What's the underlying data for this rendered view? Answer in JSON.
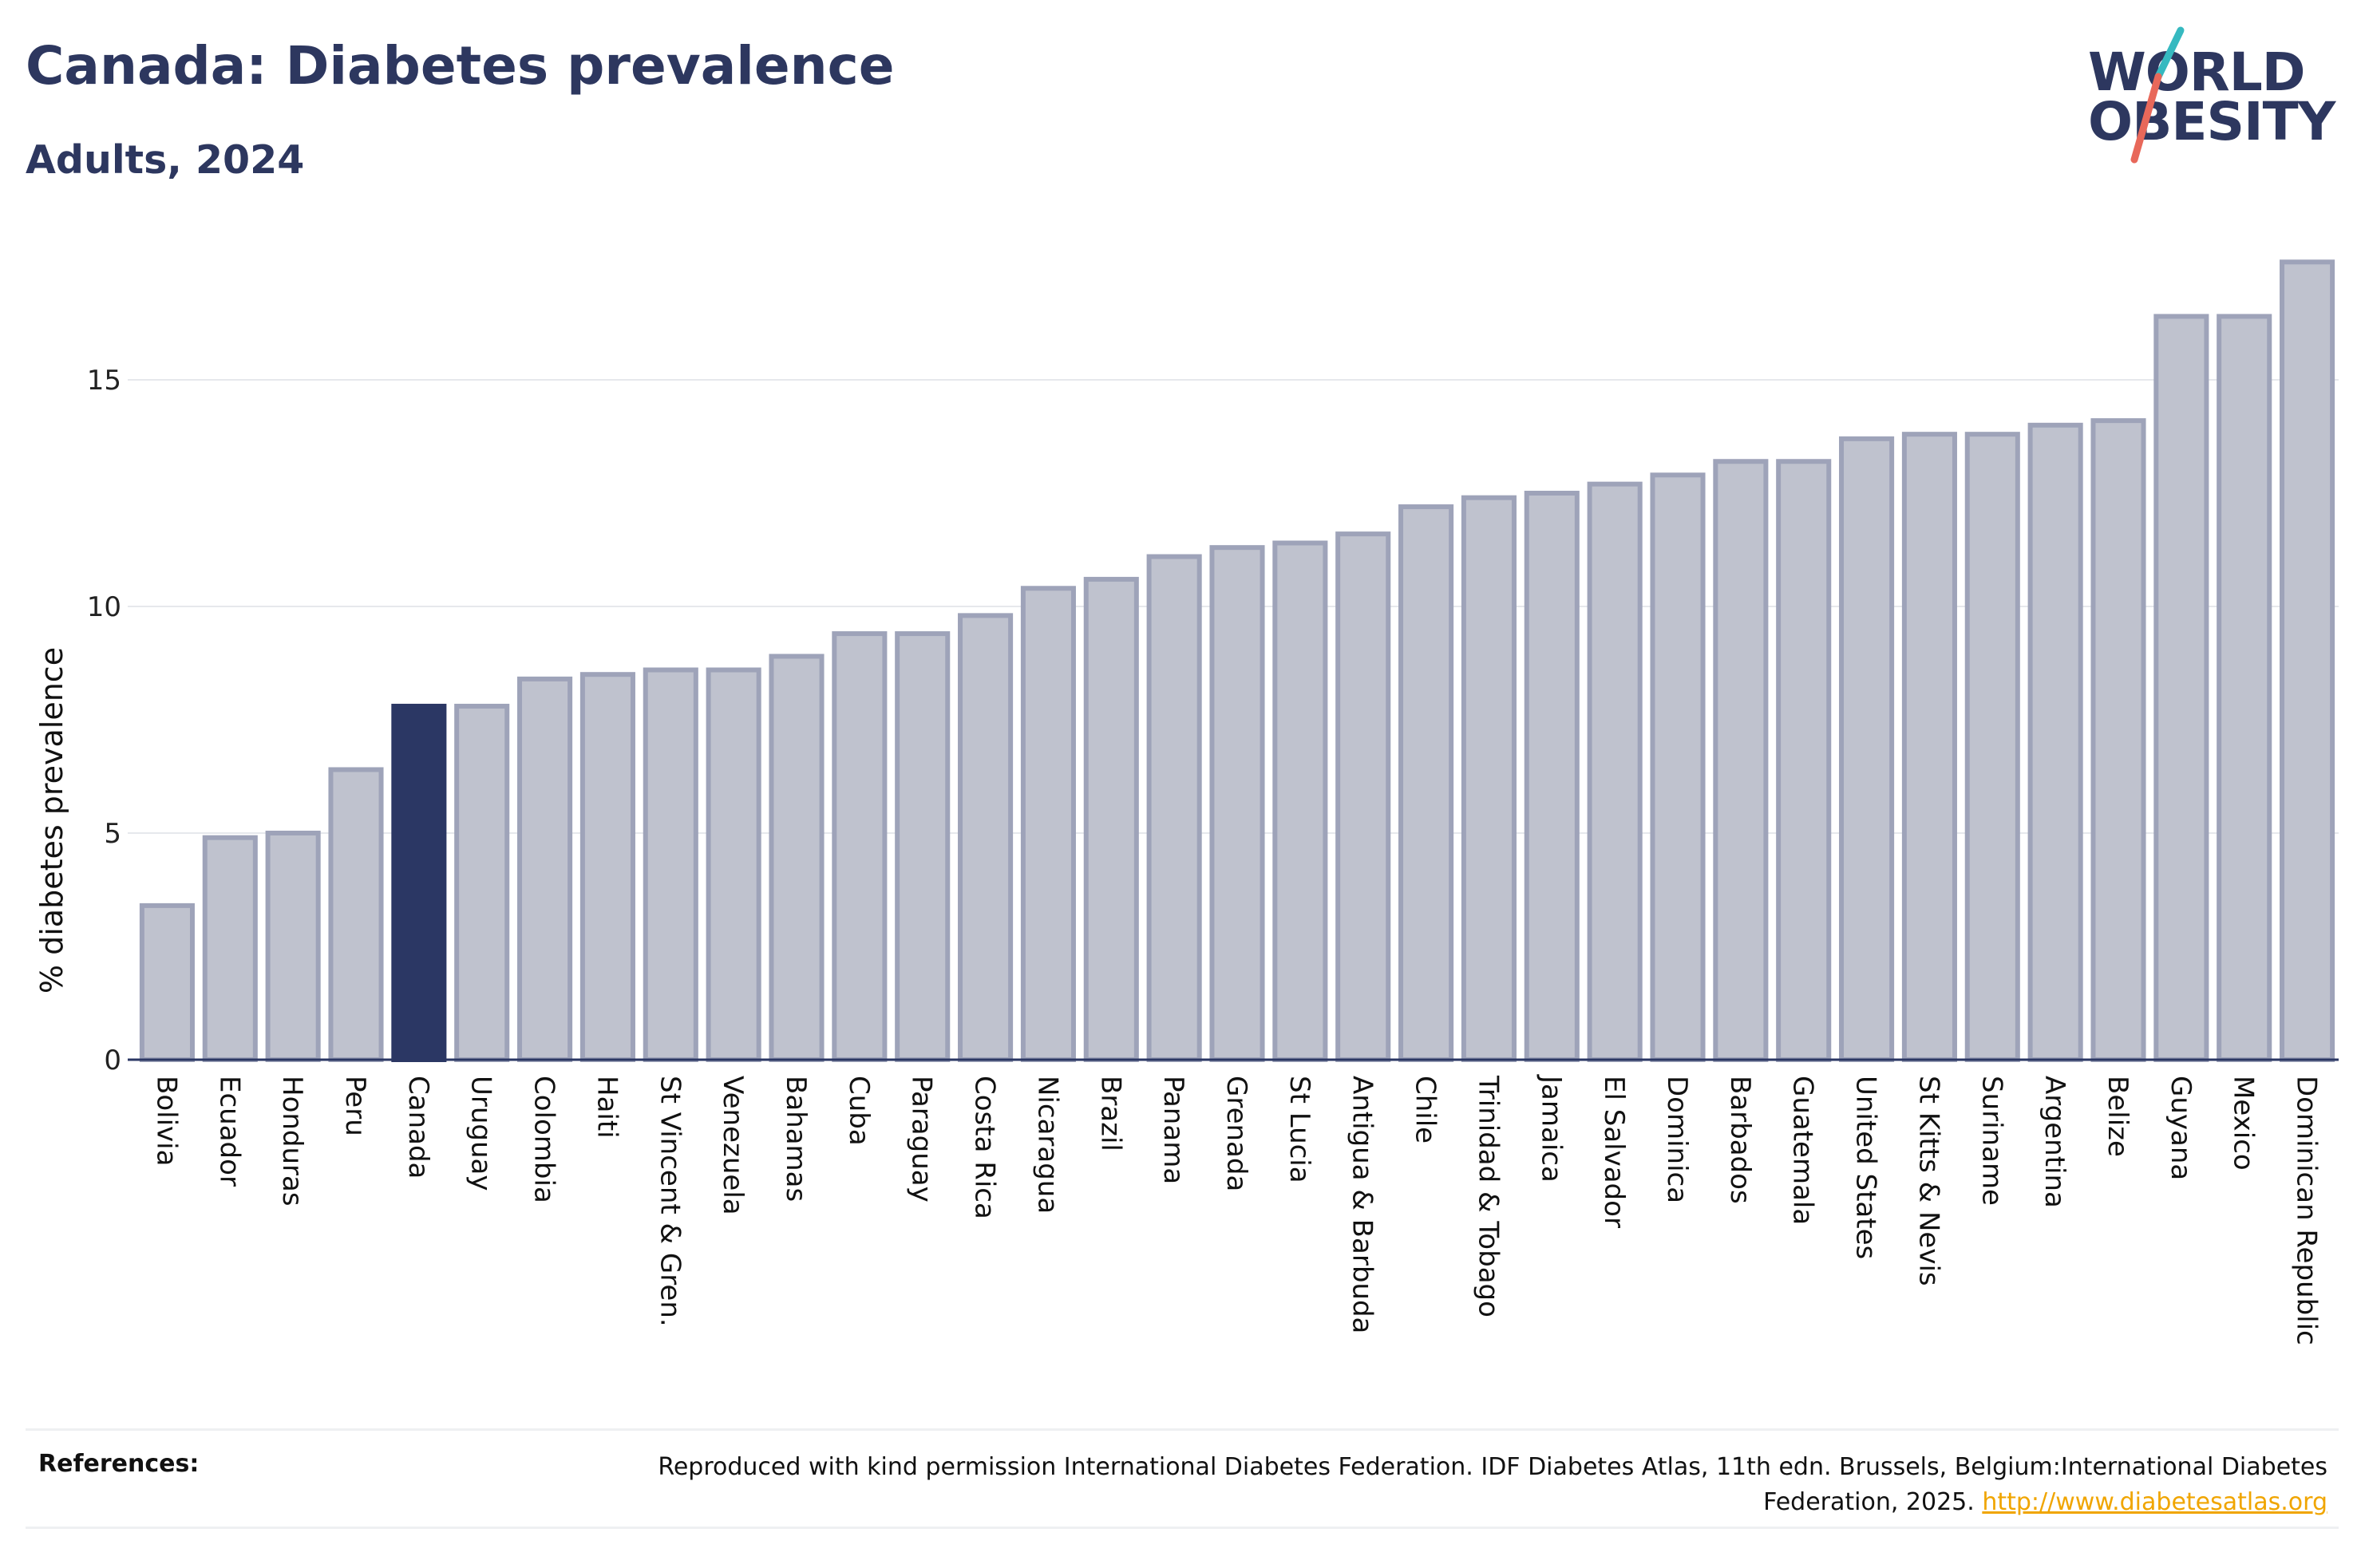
{
  "header": {
    "title": "Canada: Diabetes prevalence",
    "subtitle": "Adults, 2024"
  },
  "logo": {
    "line1": "WORLD",
    "line2": "OBESITY",
    "accent_colors": [
      "#36b9c0",
      "#e8685a"
    ]
  },
  "chart_data": {
    "type": "bar",
    "title": "Canada: Diabetes prevalence",
    "subtitle": "Adults, 2024",
    "xlabel": "",
    "ylabel": "% diabetes prevalence",
    "ylim": [
      0,
      18
    ],
    "yticks": [
      0,
      5,
      10,
      15
    ],
    "grid": true,
    "highlight": "Canada",
    "colors": {
      "bar": "#bfc2ce",
      "bar_border": "#9ea3b9",
      "highlight": "#2b3764"
    },
    "categories": [
      "Bolivia",
      "Ecuador",
      "Honduras",
      "Peru",
      "Canada",
      "Uruguay",
      "Colombia",
      "Haiti",
      "St Vincent & Gren.",
      "Venezuela",
      "Bahamas",
      "Cuba",
      "Paraguay",
      "Costa Rica",
      "Nicaragua",
      "Brazil",
      "Panama",
      "Grenada",
      "St Lucia",
      "Antigua & Barbuda",
      "Chile",
      "Trinidad & Tobago",
      "Jamaica",
      "El Salvador",
      "Dominica",
      "Barbados",
      "Guatemala",
      "United States",
      "St Kitts & Nevis",
      "Suriname",
      "Argentina",
      "Belize",
      "Guyana",
      "Mexico",
      "Dominican Republic"
    ],
    "values": [
      3.4,
      4.9,
      5.0,
      6.4,
      7.8,
      7.8,
      8.4,
      8.5,
      8.6,
      8.6,
      8.9,
      9.4,
      9.4,
      9.8,
      10.4,
      10.6,
      11.1,
      11.3,
      11.4,
      11.6,
      12.2,
      12.4,
      12.5,
      12.7,
      12.9,
      13.2,
      13.2,
      13.7,
      13.8,
      13.8,
      14.0,
      14.1,
      16.4,
      16.4,
      17.6
    ]
  },
  "references": {
    "label": "References:",
    "text": "Reproduced with kind permission International Diabetes Federation. IDF Diabetes Atlas, 11th edn. Brussels, Belgium:International Diabetes Federation, 2025. ",
    "link": "http://www.diabetesatlas.org"
  }
}
